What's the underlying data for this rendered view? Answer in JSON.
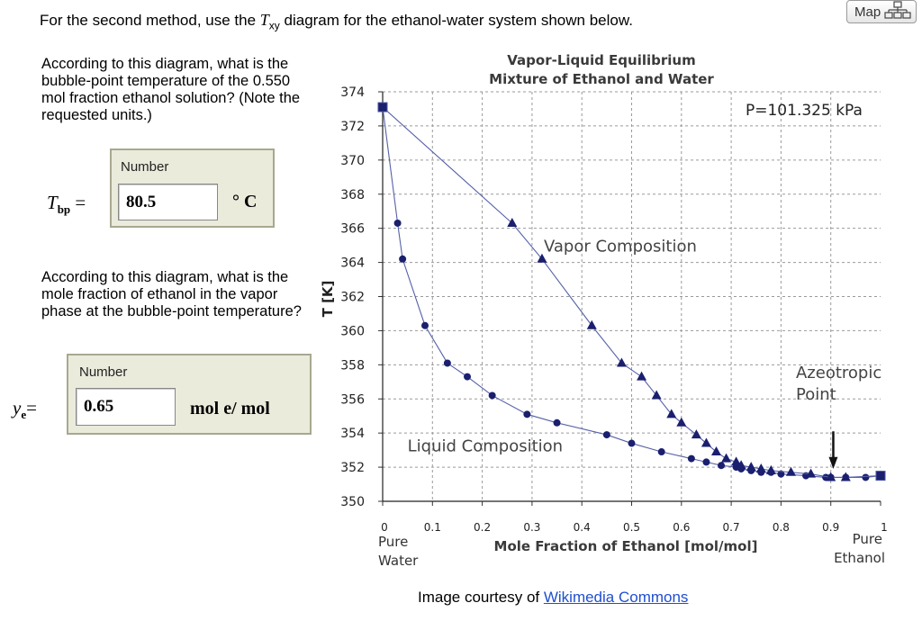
{
  "intro": {
    "prefix": "For the second method, use the ",
    "var": "T",
    "sub": "xy",
    "suffix": " diagram for the ethanol-water system shown below."
  },
  "map_button": {
    "label": "Map"
  },
  "q1": {
    "text": "According to this diagram, what is the bubble-point temperature of the 0.550 mol fraction ethanol solution? (Note the requested units.)",
    "box_label": "Number",
    "var": "T",
    "var_sub": "bp",
    "equals": "=",
    "value": "80.5",
    "unit": "° C"
  },
  "q2": {
    "text": "According to this diagram, what is the mole fraction of ethanol in the vapor phase at the bubble-point temperature?",
    "box_label": "Number",
    "var": "y",
    "var_sub": "e",
    "equals": "=",
    "value": "0.65",
    "unit": "mol  e/ mol"
  },
  "credit": {
    "prefix": "Image courtesy of ",
    "link": "Wikimedia Commons"
  },
  "chart_data": {
    "type": "line",
    "title": "Vapor-Liquid Equilibrium",
    "subtitle": "Mixture of Ethanol and Water",
    "xlabel": "Mole Fraction of Ethanol [mol/mol]",
    "ylabel": "T [K]",
    "xlim": [
      0,
      1
    ],
    "ylim": [
      350,
      374
    ],
    "x_ticks": [
      "0",
      "0.1",
      "0.2",
      "0.3",
      "0.4",
      "0.5",
      "0.6",
      "0.7",
      "0.8",
      "0.9",
      "1"
    ],
    "y_ticks": [
      "350",
      "352",
      "354",
      "356",
      "358",
      "360",
      "362",
      "364",
      "366",
      "368",
      "370",
      "372",
      "374"
    ],
    "x_end_labels": {
      "left": [
        "Pure",
        "Water"
      ],
      "right": [
        "Pure",
        "Ethanol"
      ]
    },
    "pressure_label": "P=101.325 kPa",
    "grid": true,
    "series": [
      {
        "name": "Liquid Composition",
        "color": "#1a1f6e",
        "marker": "circle",
        "x": [
          0.0,
          0.03,
          0.04,
          0.085,
          0.13,
          0.17,
          0.22,
          0.29,
          0.35,
          0.45,
          0.5,
          0.56,
          0.62,
          0.65,
          0.68,
          0.71,
          0.72,
          0.74,
          0.76,
          0.78,
          0.8,
          0.85,
          0.89,
          0.9,
          0.93,
          0.97,
          1.0
        ],
        "y": [
          373.1,
          366.3,
          364.2,
          360.3,
          358.1,
          357.3,
          356.2,
          355.1,
          354.6,
          353.9,
          353.4,
          352.9,
          352.5,
          352.3,
          352.1,
          352.0,
          351.9,
          351.8,
          351.7,
          351.7,
          351.6,
          351.5,
          351.4,
          351.4,
          351.4,
          351.4,
          351.5
        ]
      },
      {
        "name": "Vapor Composition",
        "color": "#1a1f6e",
        "marker": "triangle",
        "x": [
          0.0,
          0.26,
          0.32,
          0.42,
          0.48,
          0.52,
          0.55,
          0.58,
          0.6,
          0.63,
          0.65,
          0.67,
          0.69,
          0.71,
          0.72,
          0.74,
          0.76,
          0.78,
          0.82,
          0.86,
          0.9,
          0.93,
          1.0
        ],
        "y": [
          373.1,
          366.3,
          364.2,
          360.3,
          358.1,
          357.3,
          356.2,
          355.1,
          354.6,
          353.9,
          353.4,
          352.9,
          352.5,
          352.3,
          352.1,
          352.0,
          351.9,
          351.8,
          351.7,
          351.6,
          351.4,
          351.4,
          351.5
        ]
      }
    ],
    "annotations": [
      {
        "text": "Vapor Composition",
        "x": 0.32,
        "y": 364.9
      },
      {
        "text": "Liquid Composition",
        "x": 0.05,
        "y": 353.2
      },
      {
        "text": [
          "Azeotropic",
          "Point"
        ],
        "x": 0.83,
        "y": 357.5
      }
    ]
  }
}
